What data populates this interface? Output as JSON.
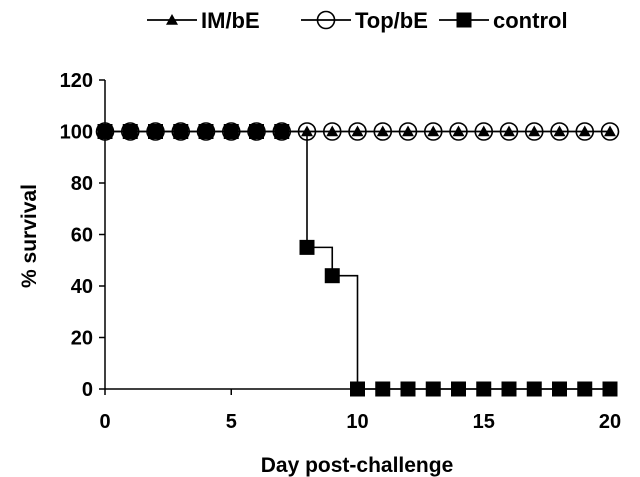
{
  "chart_data": {
    "type": "line",
    "title": "",
    "xlabel": "Day post-challenge",
    "ylabel": "% survival",
    "xlim": [
      0,
      20
    ],
    "ylim": [
      0,
      120
    ],
    "x_ticks": [
      0,
      5,
      10,
      15,
      20
    ],
    "y_ticks": [
      0,
      20,
      40,
      60,
      80,
      100,
      120
    ],
    "grid": false,
    "legend_position": "top",
    "step": true,
    "series": [
      {
        "name": "IM/bE",
        "marker": "triangle",
        "color": "#000000",
        "x": [
          0,
          1,
          2,
          3,
          4,
          5,
          6,
          7,
          8,
          9,
          10,
          11,
          12,
          13,
          14,
          15,
          16,
          17,
          18,
          19,
          20
        ],
        "values": [
          100,
          100,
          100,
          100,
          100,
          100,
          100,
          100,
          100,
          100,
          100,
          100,
          100,
          100,
          100,
          100,
          100,
          100,
          100,
          100,
          100
        ]
      },
      {
        "name": "Top/bE",
        "marker": "open-circle",
        "color": "#000000",
        "x": [
          0,
          1,
          2,
          3,
          4,
          5,
          6,
          7,
          8,
          9,
          10,
          11,
          12,
          13,
          14,
          15,
          16,
          17,
          18,
          19,
          20
        ],
        "values": [
          100,
          100,
          100,
          100,
          100,
          100,
          100,
          100,
          100,
          100,
          100,
          100,
          100,
          100,
          100,
          100,
          100,
          100,
          100,
          100,
          100
        ]
      },
      {
        "name": "control",
        "marker": "square",
        "color": "#000000",
        "x": [
          0,
          1,
          2,
          3,
          4,
          5,
          6,
          7,
          8,
          9,
          10,
          11,
          12,
          13,
          14,
          15,
          16,
          17,
          18,
          19,
          20
        ],
        "values": [
          100,
          100,
          100,
          100,
          100,
          100,
          100,
          100,
          55,
          44,
          0,
          0,
          0,
          0,
          0,
          0,
          0,
          0,
          0,
          0,
          0
        ]
      }
    ]
  }
}
